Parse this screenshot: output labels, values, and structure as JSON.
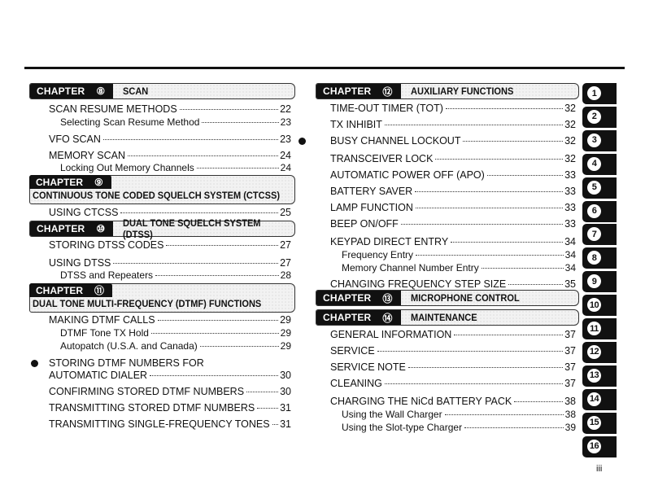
{
  "left_column": [
    {
      "type": "chapter",
      "label": "CHAPTER",
      "num": "⑧",
      "title": "SCAN"
    },
    {
      "type": "entry",
      "title": "SCAN RESUME METHODS",
      "page": "22"
    },
    {
      "type": "sub",
      "title": "Selecting Scan Resume Method",
      "page": "23"
    },
    {
      "type": "entry",
      "title": "VFO SCAN",
      "page": "23"
    },
    {
      "type": "entry",
      "title": "MEMORY SCAN",
      "page": "24"
    },
    {
      "type": "sub",
      "title": "Locking Out Memory Channels",
      "page": "24"
    },
    {
      "type": "chapter2",
      "label": "CHAPTER",
      "num": "⑨",
      "title": "CONTINUOUS TONE CODED SQUELCH SYSTEM (CTCSS)"
    },
    {
      "type": "entry",
      "title": "USING CTCSS",
      "page": "25"
    },
    {
      "type": "chapter",
      "label": "CHAPTER",
      "num": "⑩",
      "title": "DUAL TONE SQUELCH SYSTEM (DTSS)"
    },
    {
      "type": "entry",
      "title": "STORING DTSS CODES",
      "page": "27"
    },
    {
      "type": "entry",
      "title": "USING DTSS",
      "page": "27"
    },
    {
      "type": "sub",
      "title": "DTSS and Repeaters",
      "page": "28"
    },
    {
      "type": "chapter2",
      "label": "CHAPTER",
      "num": "⑪",
      "title": "DUAL TONE MULTI-FREQUENCY (DTMF) FUNCTIONS"
    },
    {
      "type": "entry",
      "title": "MAKING DTMF CALLS",
      "page": "29"
    },
    {
      "type": "sub",
      "title": "DTMF Tone TX Hold",
      "page": "29"
    },
    {
      "type": "sub",
      "title": "Autopatch (U.S.A. and Canada)",
      "page": "29"
    },
    {
      "type": "entry",
      "title": "STORING DTMF NUMBERS FOR",
      "page": "",
      "bullet": true,
      "noleader": true
    },
    {
      "type": "entry",
      "title": "AUTOMATIC DIALER",
      "page": "30"
    },
    {
      "type": "entry",
      "title": "CONFIRMING STORED DTMF NUMBERS",
      "page": "30"
    },
    {
      "type": "entry",
      "title": "TRANSMITTING STORED DTMF NUMBERS",
      "page": "31"
    },
    {
      "type": "entry",
      "title": "TRANSMITTING SINGLE-FREQUENCY TONES",
      "page": "31"
    }
  ],
  "right_column": [
    {
      "type": "chapter",
      "label": "CHAPTER",
      "num": "⑫",
      "title": "AUXILIARY FUNCTIONS"
    },
    {
      "type": "entry",
      "title": "TIME-OUT TIMER (TOT)",
      "page": "32"
    },
    {
      "type": "entry",
      "title": "TX INHIBIT",
      "page": "32"
    },
    {
      "type": "entry",
      "title": "BUSY CHANNEL LOCKOUT",
      "page": "32",
      "bullet": true
    },
    {
      "type": "entry",
      "title": "TRANSCEIVER LOCK",
      "page": "32"
    },
    {
      "type": "entry",
      "title": "AUTOMATIC POWER OFF (APO)",
      "page": "33"
    },
    {
      "type": "entry",
      "title": "BATTERY SAVER",
      "page": "33"
    },
    {
      "type": "entry",
      "title": "LAMP FUNCTION",
      "page": "33"
    },
    {
      "type": "entry",
      "title": "BEEP ON/OFF",
      "page": "33"
    },
    {
      "type": "entry",
      "title": "KEYPAD DIRECT ENTRY",
      "page": "34"
    },
    {
      "type": "sub",
      "title": "Frequency Entry",
      "page": "34"
    },
    {
      "type": "sub",
      "title": "Memory Channel Number Entry",
      "page": "34"
    },
    {
      "type": "entry",
      "title": "CHANGING FREQUENCY STEP SIZE",
      "page": "35"
    },
    {
      "type": "chapter",
      "label": "CHAPTER",
      "num": "⑬",
      "title": "MICROPHONE CONTROL"
    },
    {
      "type": "chapter",
      "label": "CHAPTER",
      "num": "⑭",
      "title": "MAINTENANCE"
    },
    {
      "type": "entry",
      "title": "GENERAL INFORMATION",
      "page": "37"
    },
    {
      "type": "entry",
      "title": "SERVICE",
      "page": "37"
    },
    {
      "type": "entry",
      "title": "SERVICE NOTE",
      "page": "37"
    },
    {
      "type": "entry",
      "title": "CLEANING",
      "page": "37"
    },
    {
      "type": "entry",
      "title": "CHARGING THE NiCd BATTERY PACK",
      "page": "38"
    },
    {
      "type": "sub",
      "title": "Using the Wall Charger",
      "page": "38"
    },
    {
      "type": "sub",
      "title": "Using the Slot-type Charger",
      "page": "39"
    }
  ],
  "side_tabs": [
    "1",
    "2",
    "3",
    "4",
    "5",
    "6",
    "7",
    "8",
    "9",
    "10",
    "11",
    "12",
    "13",
    "14",
    "15",
    "16"
  ],
  "page_number": "iii"
}
